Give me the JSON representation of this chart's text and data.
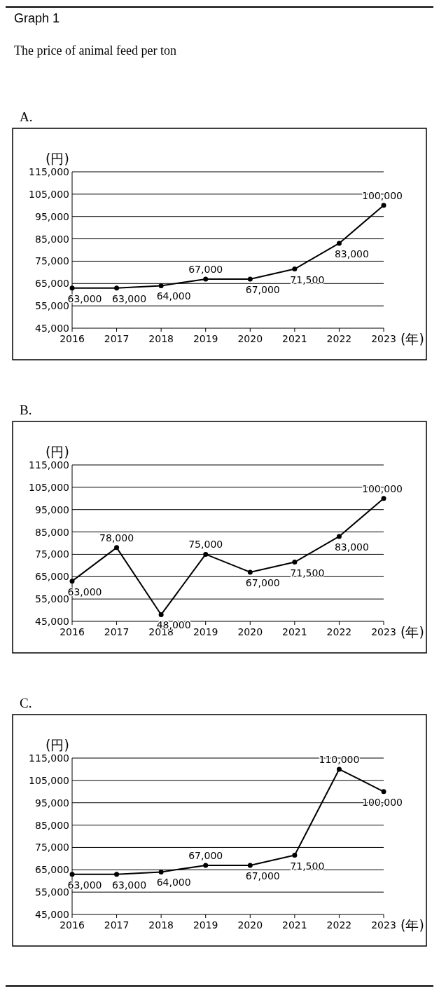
{
  "chart_data": [
    {
      "type": "line",
      "title": "A.",
      "annotations": [
        "Graph 1",
        "The price of animal feed per ton"
      ],
      "ylabel": "(円)",
      "xlabel": "(年)",
      "categories": [
        "2016",
        "2017",
        "2018",
        "2019",
        "2020",
        "2021",
        "2022",
        "2023"
      ],
      "values": [
        63000,
        63000,
        64000,
        67000,
        67000,
        71500,
        83000,
        100000
      ],
      "value_labels": [
        "63,000",
        "63,000",
        "64,000",
        "67,000",
        "67,000",
        "71,500",
        "83,000",
        "100,000"
      ],
      "color": "#000000",
      "ylim": [
        45000,
        115000
      ],
      "yticks": [
        {
          "value": 45000,
          "label": "45,000"
        },
        {
          "value": 55000,
          "label": "55,000"
        },
        {
          "value": 65000,
          "label": "65,000"
        },
        {
          "value": 75000,
          "label": "75,000"
        },
        {
          "value": 85000,
          "label": "85,000"
        },
        {
          "value": 95000,
          "label": "95,000"
        },
        {
          "value": 105000,
          "label": "105,000"
        },
        {
          "value": 115000,
          "label": "115,000"
        }
      ],
      "grid": "y",
      "marker": "circle",
      "line_style": "solid"
    },
    {
      "type": "line",
      "title": "B.",
      "ylabel": "(円)",
      "xlabel": "(年)",
      "categories": [
        "2016",
        "2017",
        "2018",
        "2019",
        "2020",
        "2021",
        "2022",
        "2023"
      ],
      "values": [
        63000,
        78000,
        48000,
        75000,
        67000,
        71500,
        83000,
        100000
      ],
      "value_labels": [
        "63,000",
        "78,000",
        "48,000",
        "75,000",
        "67,000",
        "71,500",
        "83,000",
        "100,000"
      ],
      "color": "#000000",
      "ylim": [
        45000,
        115000
      ],
      "yticks": [
        {
          "value": 45000,
          "label": "45,000"
        },
        {
          "value": 55000,
          "label": "55,000"
        },
        {
          "value": 65000,
          "label": "65,000"
        },
        {
          "value": 75000,
          "label": "75,000"
        },
        {
          "value": 85000,
          "label": "85,000"
        },
        {
          "value": 95000,
          "label": "95,000"
        },
        {
          "value": 105000,
          "label": "105,000"
        },
        {
          "value": 115000,
          "label": "115,000"
        }
      ],
      "grid": "y",
      "marker": "circle",
      "line_style": "solid"
    },
    {
      "type": "line",
      "title": "C.",
      "ylabel": "(円)",
      "xlabel": "(年)",
      "categories": [
        "2016",
        "2017",
        "2018",
        "2019",
        "2020",
        "2021",
        "2022",
        "2023"
      ],
      "values": [
        63000,
        63000,
        64000,
        67000,
        67000,
        71500,
        110000,
        100000
      ],
      "value_labels": [
        "63,000",
        "63,000",
        "64,000",
        "67,000",
        "67,000",
        "71,500",
        "110,000",
        "100,000"
      ],
      "color": "#000000",
      "ylim": [
        45000,
        115000
      ],
      "yticks": [
        {
          "value": 45000,
          "label": "45,000"
        },
        {
          "value": 55000,
          "label": "55,000"
        },
        {
          "value": 65000,
          "label": "65,000"
        },
        {
          "value": 75000,
          "label": "75,000"
        },
        {
          "value": 85000,
          "label": "85,000"
        },
        {
          "value": 95000,
          "label": "95,000"
        },
        {
          "value": 105000,
          "label": "105,000"
        },
        {
          "value": 115000,
          "label": "115,000"
        }
      ],
      "grid": "y",
      "marker": "circle",
      "line_style": "solid"
    }
  ]
}
